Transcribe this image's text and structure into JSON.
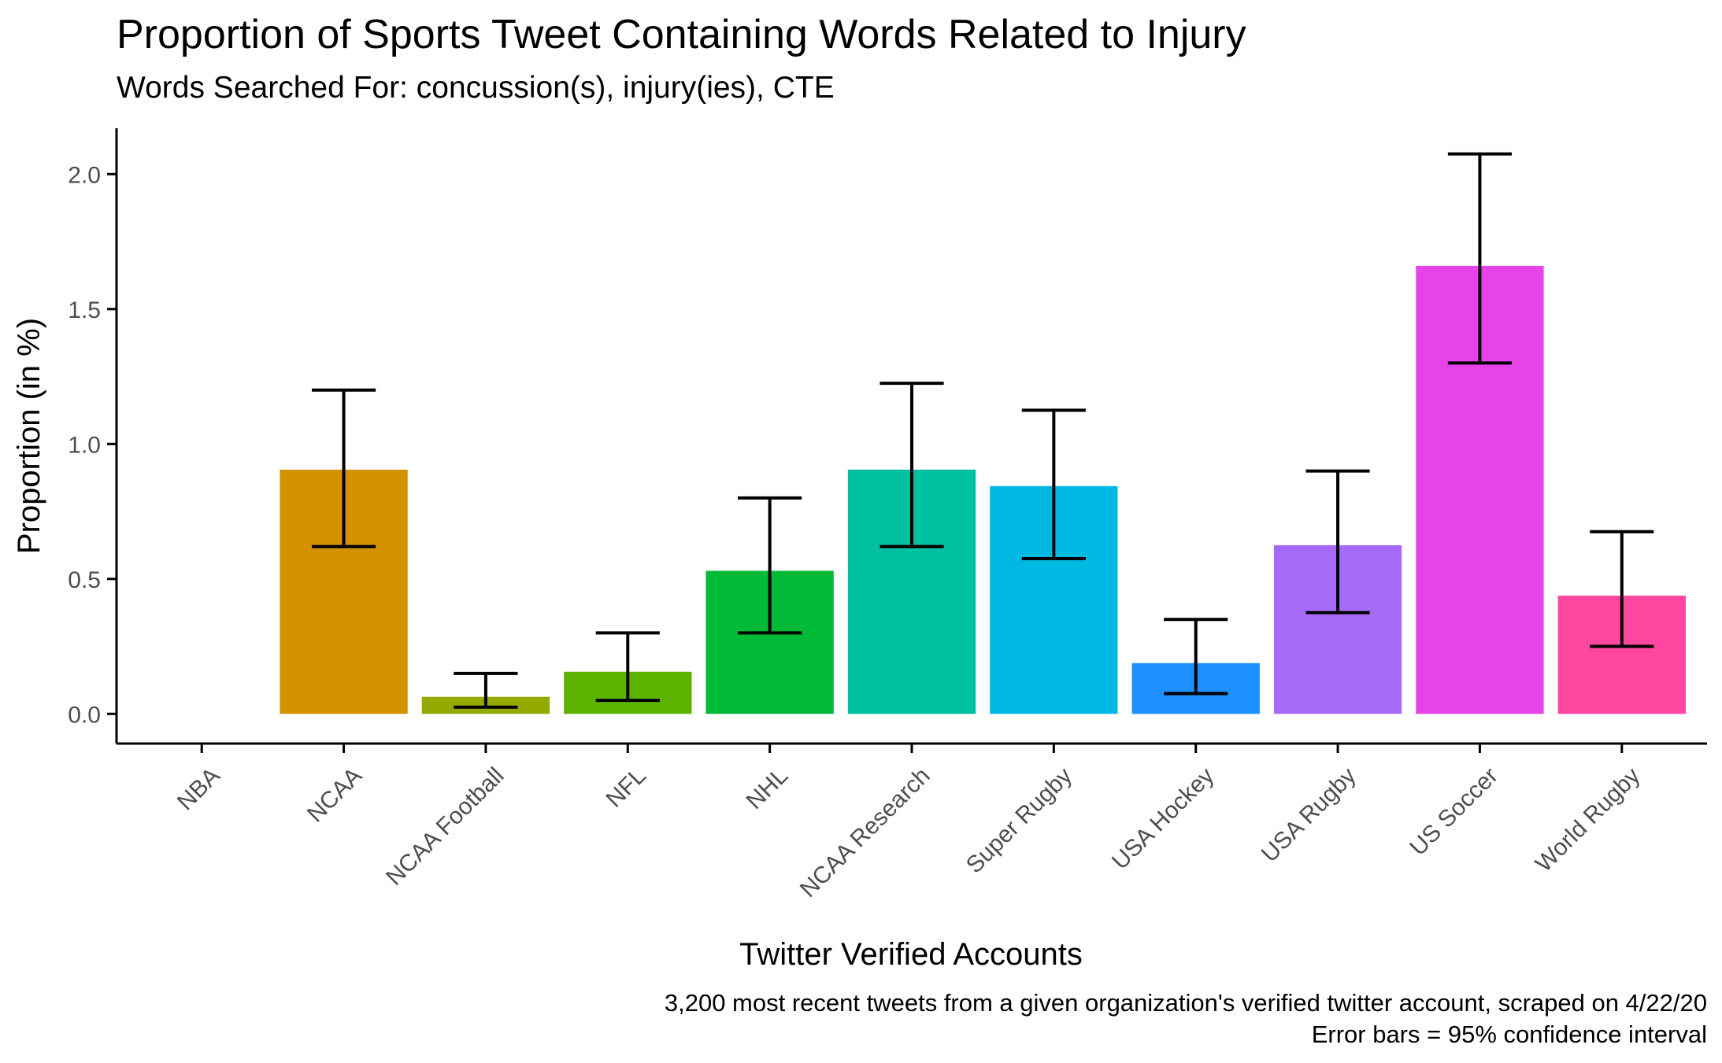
{
  "chart_data": {
    "type": "bar",
    "title": "Proportion of Sports Tweet Containing Words Related to Injury",
    "subtitle": "Words Searched For: concussion(s), injury(ies), CTE",
    "xlabel": "Twitter Verified Accounts",
    "ylabel": "Proportion (in %)",
    "caption": [
      "3,200 most recent tweets from a given organization's verified twitter account, scraped on 4/22/20",
      "Error bars = 95% confidence interval"
    ],
    "ylim": [
      -0.11,
      2.17
    ],
    "yticks": [
      "0.0",
      "0.5",
      "1.0",
      "1.5",
      "2.0"
    ],
    "ytick_values": [
      0,
      0.5,
      1.0,
      1.5,
      2.0
    ],
    "grid": false,
    "legend": "none",
    "categories": [
      "NBA",
      "NCAA",
      "NCAA Football",
      "NFL",
      "NHL",
      "NCAA Research",
      "Super Rugby",
      "USA Hockey",
      "USA Rugby",
      "US Soccer",
      "World Rugby"
    ],
    "values": [
      0.0,
      0.905,
      0.063,
      0.156,
      0.53,
      0.905,
      0.844,
      0.188,
      0.625,
      1.66,
      0.438
    ],
    "error_low": [
      0.0,
      0.62,
      0.025,
      0.05,
      0.3,
      0.62,
      0.575,
      0.075,
      0.375,
      1.3,
      0.25
    ],
    "error_high": [
      0.0,
      1.2,
      0.15,
      0.3,
      0.8,
      1.225,
      1.125,
      0.35,
      0.9,
      2.075,
      0.675
    ],
    "colors": [
      "#F8766D",
      "#D39200",
      "#93AA00",
      "#5BB300",
      "#00BA38",
      "#00C19F",
      "#00B9E3",
      "#1E90FF",
      "#A66AF9",
      "#E643E8",
      "#FF47A1"
    ]
  }
}
